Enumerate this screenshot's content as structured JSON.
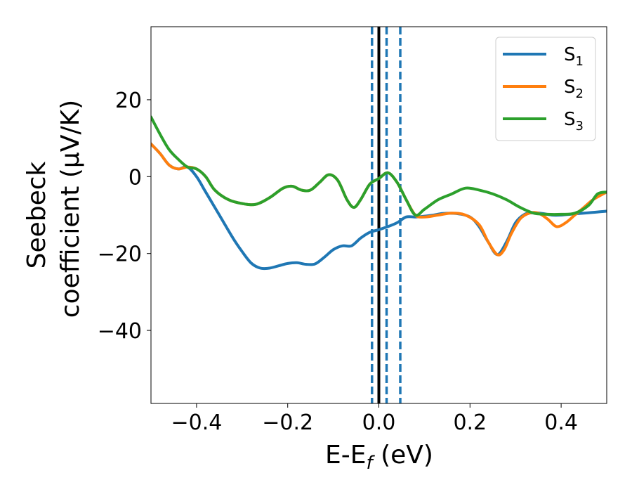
{
  "chart_data": {
    "type": "line",
    "xlabel": "E-E",
    "xlabel_sub": "f",
    "xlabel_unit": " (eV)",
    "ylabel_line1": "Seebeck",
    "ylabel_line2": "coefficient  (μV/K)",
    "xlim": [
      -0.5,
      0.5
    ],
    "ylim": [
      -59,
      39
    ],
    "x_ticks": [
      -0.4,
      -0.2,
      0.0,
      0.2,
      0.4
    ],
    "x_tick_labels": [
      "−0.4",
      "−0.2",
      "0.0",
      "0.2",
      "0.4"
    ],
    "y_ticks": [
      20,
      0,
      -20,
      -40
    ],
    "y_tick_labels": [
      "20",
      "0",
      "−20",
      "−40"
    ],
    "grid": false,
    "legend_position": "top-right",
    "vertical_lines": [
      {
        "x": -0.015,
        "style": "dashed",
        "color": "#1f77b4"
      },
      {
        "x": 0.0,
        "style": "solid",
        "color": "#000000"
      },
      {
        "x": 0.017,
        "style": "dashed",
        "color": "#1f77b4"
      },
      {
        "x": 0.047,
        "style": "dashed",
        "color": "#1f77b4"
      }
    ],
    "series": [
      {
        "name": "S",
        "sub": "1",
        "color": "#1f77b4",
        "x": [
          -0.5,
          -0.48,
          -0.46,
          -0.44,
          -0.42,
          -0.4,
          -0.38,
          -0.35,
          -0.32,
          -0.3,
          -0.28,
          -0.26,
          -0.24,
          -0.22,
          -0.2,
          -0.18,
          -0.16,
          -0.14,
          -0.12,
          -0.1,
          -0.08,
          -0.06,
          -0.04,
          -0.02,
          0.0,
          0.02,
          0.04,
          0.06,
          0.08,
          0.1,
          0.12,
          0.14,
          0.17,
          0.2,
          0.22,
          0.24,
          0.26,
          0.28,
          0.3,
          0.32,
          0.34,
          0.36,
          0.38,
          0.4,
          0.42,
          0.44,
          0.46,
          0.48,
          0.5
        ],
        "y": [
          8.5,
          6,
          3,
          2,
          2.5,
          0,
          -4,
          -10,
          -16,
          -19.5,
          -22.5,
          -23.8,
          -23.8,
          -23.2,
          -22.6,
          -22.4,
          -22.8,
          -22.7,
          -21,
          -19,
          -18,
          -18,
          -16,
          -14.5,
          -13.8,
          -13,
          -12,
          -10.5,
          -10.5,
          -10.3,
          -10,
          -9.6,
          -9.6,
          -10.5,
          -13,
          -17,
          -20.3,
          -17,
          -12,
          -9.8,
          -9.4,
          -9.6,
          -10,
          -10,
          -9.8,
          -9.6,
          -9.4,
          -9.2,
          -9
        ]
      },
      {
        "name": "S",
        "sub": "2",
        "color": "#ff7f0e",
        "x": [
          -0.5,
          -0.48,
          -0.46,
          -0.44,
          -0.42,
          -0.4,
          -0.38,
          -0.36,
          -0.33,
          -0.3,
          -0.27,
          -0.24,
          -0.21,
          -0.19,
          -0.17,
          -0.15,
          -0.13,
          -0.11,
          -0.09,
          -0.07,
          -0.055,
          -0.04,
          -0.02,
          0.0,
          0.02,
          0.04,
          0.06,
          0.08,
          0.1,
          0.13,
          0.16,
          0.19,
          0.22,
          0.24,
          0.26,
          0.275,
          0.29,
          0.31,
          0.33,
          0.35,
          0.37,
          0.39,
          0.41,
          0.43,
          0.45,
          0.47,
          0.5
        ],
        "y": [
          8.5,
          6,
          3,
          2,
          2.5,
          2,
          0,
          -3.5,
          -6,
          -7,
          -7.2,
          -5.5,
          -3,
          -2.5,
          -3.5,
          -3.5,
          -1.5,
          0.5,
          -1,
          -6,
          -8,
          -6,
          -2,
          -0.5,
          1,
          -1.5,
          -6,
          -10,
          -10.5,
          -10,
          -9.5,
          -10,
          -12.5,
          -17,
          -20.3,
          -19,
          -15,
          -11,
          -9.5,
          -9.5,
          -11,
          -13,
          -12,
          -10,
          -8,
          -6,
          -4
        ]
      },
      {
        "name": "S",
        "sub": "3",
        "color": "#2ca02c",
        "x": [
          -0.5,
          -0.48,
          -0.46,
          -0.44,
          -0.42,
          -0.4,
          -0.38,
          -0.36,
          -0.33,
          -0.3,
          -0.27,
          -0.24,
          -0.21,
          -0.19,
          -0.17,
          -0.15,
          -0.13,
          -0.11,
          -0.09,
          -0.07,
          -0.055,
          -0.04,
          -0.02,
          0.0,
          0.02,
          0.04,
          0.06,
          0.08,
          0.1,
          0.13,
          0.16,
          0.19,
          0.22,
          0.25,
          0.28,
          0.31,
          0.34,
          0.37,
          0.4,
          0.43,
          0.46,
          0.48,
          0.5
        ],
        "y": [
          15.5,
          11,
          7,
          4.5,
          2.5,
          2,
          0,
          -3.5,
          -6,
          -7,
          -7.2,
          -5.5,
          -3,
          -2.5,
          -3.5,
          -3.5,
          -1.5,
          0.5,
          -1,
          -6,
          -8,
          -6,
          -2,
          -0.5,
          1,
          -1.5,
          -6,
          -10,
          -8.5,
          -6,
          -4.5,
          -3,
          -3.5,
          -4.5,
          -6,
          -8,
          -9.5,
          -9.8,
          -9.8,
          -9.5,
          -7.5,
          -4.5,
          -4
        ]
      }
    ]
  }
}
